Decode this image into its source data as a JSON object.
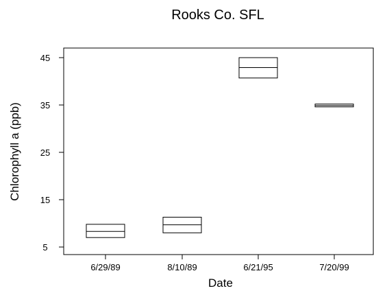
{
  "chart_data": {
    "type": "box",
    "title": "Rooks Co. SFL",
    "xlabel": "Date",
    "ylabel": "Chlorophyll a (ppb)",
    "categories": [
      "6/29/89",
      "8/10/89",
      "6/21/95",
      "7/20/99"
    ],
    "yticks": [
      "5",
      "15",
      "25",
      "35",
      "45"
    ],
    "ylim": [
      4,
      47
    ],
    "boxes": [
      {
        "category": "6/29/89",
        "q1": 7.0,
        "median": 8.3,
        "q3": 9.8
      },
      {
        "category": "8/10/89",
        "q1": 8.0,
        "median": 9.7,
        "q3": 11.3
      },
      {
        "category": "6/21/95",
        "q1": 40.7,
        "median": 42.9,
        "q3": 45.0
      },
      {
        "category": "7/20/99",
        "q1": 34.6,
        "median": 34.9,
        "q3": 35.2
      }
    ],
    "grid": false,
    "legend": "none"
  }
}
